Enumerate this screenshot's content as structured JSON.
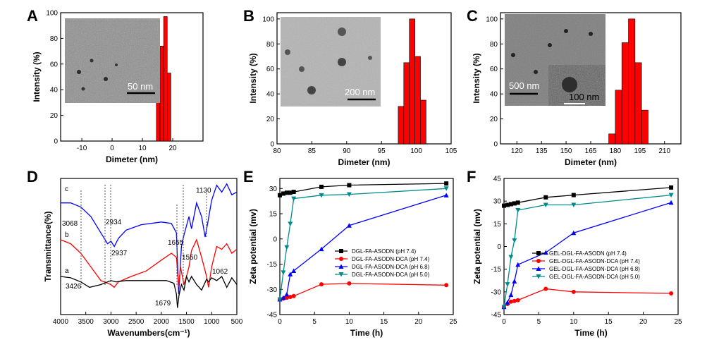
{
  "colors": {
    "black": "#000000",
    "red": "#ff0000",
    "blue": "#0000ff",
    "teal": "#008b8b"
  },
  "chart_data": [
    {
      "id": "A",
      "type": "bar",
      "panel_label": "A",
      "xlabel": "Dimeter (nm)",
      "ylabel": "Intensity (%)",
      "xlim": [
        -17,
        30
      ],
      "ylim": [
        0,
        100
      ],
      "xticks": [
        -10,
        0,
        10,
        20
      ],
      "yticks": [
        0,
        20,
        40,
        60,
        80,
        100
      ],
      "bin_width": 1.2,
      "x": [
        15.2,
        16.4,
        17.6,
        18.8
      ],
      "values": [
        44,
        74,
        97,
        53
      ],
      "inset_scale": "50 nm"
    },
    {
      "id": "B",
      "type": "bar",
      "panel_label": "B",
      "xlabel": "Dimeter (nm)",
      "ylabel": "Intensity (%)",
      "xlim": [
        80,
        105
      ],
      "ylim": [
        0,
        105
      ],
      "xticks": [
        80,
        85,
        90,
        95,
        100,
        105
      ],
      "yticks": [
        0,
        20,
        40,
        60,
        80,
        100
      ],
      "bin_width": 0.8,
      "x": [
        97.8,
        98.6,
        99.4,
        100.2,
        101.0
      ],
      "values": [
        30,
        65,
        100,
        70,
        35
      ],
      "inset_scale": "200 nm"
    },
    {
      "id": "C",
      "type": "bar",
      "panel_label": "C",
      "xlabel": "Dimeter (nm)",
      "ylabel": "Intensity (%)",
      "xlim": [
        110,
        220
      ],
      "ylim": [
        0,
        105
      ],
      "xticks": [
        120,
        135,
        150,
        165,
        180,
        195,
        210
      ],
      "yticks": [
        0,
        20,
        40,
        60,
        80,
        100
      ],
      "bin_width": 4,
      "x": [
        178,
        182,
        186,
        190,
        194,
        198
      ],
      "values": [
        8,
        43,
        81,
        100,
        65,
        27
      ],
      "inset_scale": "500 nm",
      "inset2_scale": "100 nm"
    },
    {
      "id": "D",
      "type": "line",
      "panel_label": "D",
      "xlabel": "Wavenumbers(cm⁻¹)",
      "ylabel": "Transmittance(%)",
      "xlim": [
        4000,
        500
      ],
      "xticks": [
        4000,
        3500,
        3000,
        2500,
        2000,
        1500,
        1000,
        500
      ],
      "series": [
        {
          "name": "c",
          "color": "#0000ff",
          "x": [
            4000,
            3800,
            3600,
            3400,
            3200,
            3068,
            3000,
            2934,
            2850,
            2700,
            2400,
            2000,
            1800,
            1700,
            1655,
            1600,
            1560,
            1450,
            1400,
            1300,
            1200,
            1130,
            1080,
            1000,
            900,
            800,
            700,
            600,
            500
          ],
          "y": [
            82,
            82,
            79,
            72,
            60,
            52,
            54,
            50,
            56,
            62,
            66,
            68,
            67,
            60,
            15,
            50,
            57,
            72,
            63,
            82,
            72,
            57,
            67,
            84,
            95,
            90,
            96,
            88,
            90
          ]
        },
        {
          "name": "b",
          "color": "#ff0000",
          "x": [
            4000,
            3800,
            3600,
            3400,
            3200,
            3000,
            2937,
            2850,
            2600,
            2300,
            2000,
            1800,
            1700,
            1655,
            1620,
            1550,
            1500,
            1450,
            1400,
            1300,
            1200,
            1100,
            1062,
            1000,
            900,
            800,
            700,
            600,
            500
          ],
          "y": [
            55,
            52,
            45,
            35,
            25,
            22,
            20,
            24,
            28,
            32,
            40,
            45,
            42,
            20,
            35,
            22,
            28,
            35,
            47,
            55,
            42,
            28,
            20,
            35,
            50,
            48,
            52,
            45,
            48
          ]
        },
        {
          "name": "a",
          "color": "#000000",
          "x": [
            4000,
            3800,
            3600,
            3426,
            3200,
            3000,
            2900,
            2700,
            2400,
            2100,
            1900,
            1750,
            1700,
            1679,
            1650,
            1600,
            1550,
            1500,
            1450,
            1400,
            1300,
            1200,
            1100,
            1062,
            1000,
            900,
            800,
            700,
            600,
            500
          ],
          "y": [
            28,
            27,
            24,
            20,
            22,
            25,
            24,
            25,
            25,
            25,
            25,
            23,
            15,
            5,
            14,
            22,
            18,
            28,
            24,
            28,
            22,
            18,
            26,
            24,
            27,
            25,
            28,
            20,
            27,
            22
          ]
        }
      ],
      "trace_labels": [
        "a",
        "b",
        "c"
      ],
      "annotations": [
        "3068",
        "2934",
        "1655",
        "1130",
        "2937",
        "1550",
        "1062",
        "3426",
        "1679"
      ]
    },
    {
      "id": "E",
      "type": "line",
      "panel_label": "E",
      "xlabel": "Time (h)",
      "ylabel": "Zeta potential (mv)",
      "xlim": [
        0,
        25
      ],
      "ylim": [
        -45,
        36
      ],
      "xticks": [
        0,
        5,
        10,
        15,
        20,
        25
      ],
      "yticks": [
        -45,
        -30,
        -15,
        0,
        15,
        30
      ],
      "series": [
        {
          "name": "DGL-FA-ASODN (pH 7.4)",
          "color": "#000000",
          "marker": "square",
          "x": [
            0,
            0.5,
            1,
            1.5,
            2,
            6,
            10,
            24
          ],
          "y": [
            26,
            27,
            27.5,
            27.5,
            28,
            31,
            32,
            33
          ]
        },
        {
          "name": "DGL-FA-ASODN-DCA (pH 7.4)",
          "color": "#ff0000",
          "marker": "circle",
          "x": [
            0,
            0.5,
            1,
            1.5,
            2,
            6,
            10,
            24
          ],
          "y": [
            -36,
            -35.5,
            -35,
            -34.5,
            -34,
            -27,
            -26.5,
            -27.5
          ]
        },
        {
          "name": "DGL-FA-ASODN-DCA (pH 6.8)",
          "color": "#0000ff",
          "marker": "triangle",
          "x": [
            0,
            0.5,
            1,
            1.5,
            2,
            6,
            10,
            24
          ],
          "y": [
            -36,
            -35,
            -33,
            -21,
            -19,
            -6,
            8,
            26
          ]
        },
        {
          "name": "DGL-FA-ASODN-DCA (pH 5.0)",
          "color": "#008b8b",
          "marker": "triangle-down",
          "x": [
            0,
            0.5,
            1,
            1.5,
            2,
            6,
            10,
            24
          ],
          "y": [
            -36,
            -20,
            -5,
            9,
            24,
            26,
            26.5,
            30
          ]
        }
      ]
    },
    {
      "id": "F",
      "type": "line",
      "panel_label": "F",
      "xlabel": "Time (h)",
      "ylabel": "Zeta potential (mv)",
      "xlim": [
        0,
        25
      ],
      "ylim": [
        -45,
        45
      ],
      "xticks": [
        0,
        5,
        10,
        15,
        20,
        25
      ],
      "yticks": [
        -45,
        -30,
        -15,
        0,
        15,
        30,
        45
      ],
      "series": [
        {
          "name": "GEL-DGL-FA-ASODN (pH 7.4)",
          "color": "#000000",
          "marker": "square",
          "x": [
            0,
            0.5,
            1,
            1.5,
            2,
            6,
            10,
            24
          ],
          "y": [
            27,
            27.5,
            28,
            28.5,
            29,
            32.5,
            34,
            39
          ]
        },
        {
          "name": "GEL-DGL-FA-ASODN-DCA (pH 7.4)",
          "color": "#ff0000",
          "marker": "circle",
          "x": [
            0,
            0.5,
            1,
            1.5,
            2,
            6,
            10,
            24
          ],
          "y": [
            -40,
            -38,
            -36.5,
            -36,
            -35.5,
            -28,
            -30,
            -31
          ]
        },
        {
          "name": "GEL-DGL-FA-ASODN-DCA (pH 6.8)",
          "color": "#0000ff",
          "marker": "triangle",
          "x": [
            0,
            0.5,
            1,
            1.5,
            2,
            6,
            10,
            24
          ],
          "y": [
            -40,
            -37,
            -32,
            -23,
            -12,
            -4,
            9,
            29
          ]
        },
        {
          "name": "GEL-DGL-FA-ASODN-DCA (pH 5.0)",
          "color": "#008b8b",
          "marker": "triangle-down",
          "x": [
            0,
            0.5,
            1,
            1.5,
            2,
            6,
            10,
            24
          ],
          "y": [
            -40,
            -25,
            -7,
            4,
            24,
            27.5,
            27.5,
            34
          ]
        }
      ]
    }
  ]
}
